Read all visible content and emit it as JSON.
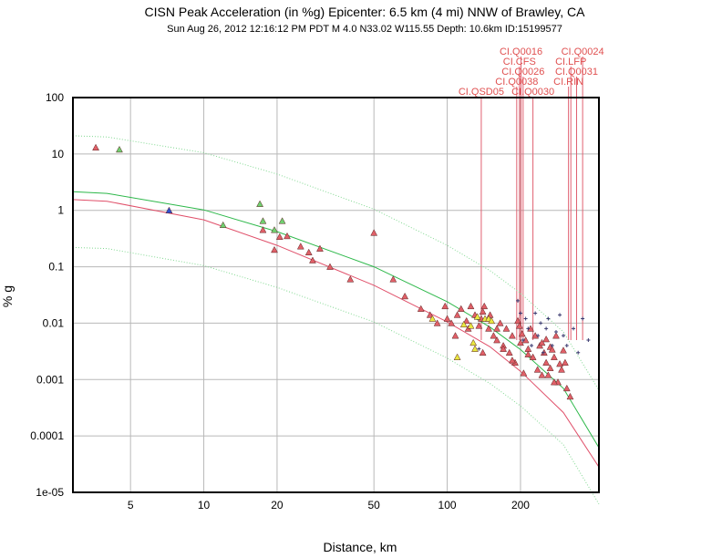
{
  "chart_data": {
    "type": "scatter",
    "title": "CISN Peak Acceleration (in %g) Epicenter: 6.5 km (4 mi) NNW of Brawley, CA",
    "subtitle": "Sun Aug 26, 2012 12:16:12 PM PDT   M 4.0   N33.02 W115.55   Depth: 10.6km   ID:15199577",
    "xlabel": "Distance, km",
    "ylabel": "% g",
    "x_scale": "log",
    "y_scale": "log",
    "xlim": [
      2.9,
      420
    ],
    "ylim": [
      1e-05,
      100
    ],
    "grid": true,
    "x_ticks": [
      {
        "value": 5,
        "label": "5"
      },
      {
        "value": 10,
        "label": "10"
      },
      {
        "value": 20,
        "label": "20"
      },
      {
        "value": 50,
        "label": "50"
      },
      {
        "value": 100,
        "label": "100"
      },
      {
        "value": 200,
        "label": "200"
      }
    ],
    "y_ticks": [
      {
        "value": 100,
        "label": "100"
      },
      {
        "value": 10,
        "label": "10"
      },
      {
        "value": 1,
        "label": "1"
      },
      {
        "value": 0.1,
        "label": "0.1"
      },
      {
        "value": 0.01,
        "label": "0.01"
      },
      {
        "value": 0.001,
        "label": "0.001"
      },
      {
        "value": 0.0001,
        "label": "0.0001"
      },
      {
        "value": 1e-05,
        "label": "1e-05"
      }
    ],
    "curves": [
      {
        "color": "#2db84a",
        "style": "solid",
        "points": [
          [
            2.9,
            2.15
          ],
          [
            4,
            2.0
          ],
          [
            10,
            1.02
          ],
          [
            20,
            0.42
          ],
          [
            50,
            0.1
          ],
          [
            100,
            0.024
          ],
          [
            150,
            0.0085
          ],
          [
            200,
            0.0034
          ],
          [
            300,
            0.0007
          ],
          [
            420,
            6.2e-05
          ]
        ]
      },
      {
        "color": "#e0506a",
        "style": "solid",
        "points": [
          [
            2.9,
            1.55
          ],
          [
            4,
            1.45
          ],
          [
            10,
            0.68
          ],
          [
            20,
            0.24
          ],
          [
            50,
            0.047
          ],
          [
            100,
            0.0105
          ],
          [
            150,
            0.0038
          ],
          [
            200,
            0.0014
          ],
          [
            300,
            0.00026
          ],
          [
            420,
            2.8e-05
          ]
        ]
      },
      {
        "color": "#80d890",
        "style": "dotted",
        "points": [
          [
            2.9,
            21
          ],
          [
            4,
            20
          ],
          [
            10,
            10.5
          ],
          [
            20,
            4.4
          ],
          [
            50,
            1.05
          ],
          [
            100,
            0.24
          ],
          [
            150,
            0.085
          ],
          [
            200,
            0.034
          ],
          [
            300,
            0.007
          ],
          [
            420,
            0.00065
          ]
        ]
      },
      {
        "color": "#80d890",
        "style": "dotted",
        "points": [
          [
            2.9,
            0.22
          ],
          [
            4,
            0.21
          ],
          [
            10,
            0.105
          ],
          [
            20,
            0.043
          ],
          [
            50,
            0.0105
          ],
          [
            100,
            0.0024
          ],
          [
            150,
            0.00085
          ],
          [
            200,
            0.00034
          ],
          [
            300,
            7e-05
          ],
          [
            420,
            6.2e-06
          ]
        ]
      }
    ],
    "series": [
      {
        "marker": "triangle",
        "color": "#e06068",
        "points": [
          [
            3.6,
            13
          ],
          [
            17.5,
            0.45
          ],
          [
            19.5,
            0.2
          ],
          [
            20.5,
            0.34
          ],
          [
            22,
            0.35
          ],
          [
            25,
            0.23
          ],
          [
            27,
            0.18
          ],
          [
            28,
            0.13
          ],
          [
            30,
            0.21
          ],
          [
            33,
            0.1
          ],
          [
            40,
            0.06
          ],
          [
            50,
            0.4
          ],
          [
            60,
            0.06
          ],
          [
            67,
            0.03
          ],
          [
            78,
            0.018
          ],
          [
            85,
            0.014
          ],
          [
            91,
            0.01
          ],
          [
            98,
            0.02
          ],
          [
            100,
            0.012
          ],
          [
            104,
            0.01
          ],
          [
            108,
            0.006
          ],
          [
            110,
            0.014
          ],
          [
            114,
            0.018
          ],
          [
            120,
            0.011
          ],
          [
            122,
            0.008
          ],
          [
            125,
            0.02
          ],
          [
            130,
            0.014
          ],
          [
            135,
            0.009
          ],
          [
            138,
            0.012
          ],
          [
            140,
            0.016
          ],
          [
            142,
            0.02
          ],
          [
            148,
            0.008
          ],
          [
            150,
            0.014
          ],
          [
            155,
            0.006
          ],
          [
            160,
            0.005
          ],
          [
            165,
            0.01
          ],
          [
            170,
            0.004
          ],
          [
            175,
            0.008
          ],
          [
            180,
            0.003
          ],
          [
            185,
            0.006
          ],
          [
            190,
            0.002
          ],
          [
            195,
            0.011
          ],
          [
            198,
            0.009
          ],
          [
            200,
            0.0045
          ],
          [
            203,
            0.0065
          ],
          [
            206,
            0.0013
          ],
          [
            210,
            0.005
          ],
          [
            215,
            0.0035
          ],
          [
            220,
            0.008
          ],
          [
            225,
            0.0025
          ],
          [
            230,
            0.006
          ],
          [
            235,
            0.0015
          ],
          [
            240,
            0.004
          ],
          [
            245,
            0.0045
          ],
          [
            250,
            0.003
          ],
          [
            255,
            0.002
          ],
          [
            260,
            0.0012
          ],
          [
            265,
            0.0038
          ],
          [
            270,
            0.0034
          ],
          [
            275,
            0.0025
          ],
          [
            280,
            0.006
          ],
          [
            285,
            0.0009
          ],
          [
            290,
            0.0019
          ],
          [
            300,
            0.0033
          ],
          [
            310,
            0.0007
          ],
          [
            320,
            0.0005
          ],
          [
            140,
            0.003
          ],
          [
            160,
            0.008
          ],
          [
            170,
            0.0035
          ],
          [
            185,
            0.0022
          ],
          [
            215,
            0.0028
          ],
          [
            245,
            0.0012
          ],
          [
            255,
            0.0052
          ],
          [
            265,
            0.0016
          ],
          [
            275,
            0.0009
          ],
          [
            295,
            0.0015
          ],
          [
            305,
            0.002
          ]
        ]
      },
      {
        "marker": "triangle",
        "color": "#70d070",
        "points": [
          [
            4.5,
            12
          ],
          [
            12,
            0.55
          ],
          [
            17,
            1.3
          ],
          [
            17.5,
            0.65
          ],
          [
            21,
            0.65
          ],
          [
            19.5,
            0.45
          ]
        ]
      },
      {
        "marker": "triangle",
        "color": "#e8e840",
        "points": [
          [
            87,
            0.012
          ],
          [
            110,
            0.0025
          ],
          [
            117,
            0.0095
          ],
          [
            125,
            0.009
          ],
          [
            128,
            0.0045
          ],
          [
            130,
            0.0035
          ],
          [
            133,
            0.013
          ],
          [
            143,
            0.012
          ],
          [
            148,
            0.012
          ],
          [
            152,
            0.011
          ]
        ]
      },
      {
        "marker": "triangle",
        "color": "#3050d0",
        "points": [
          [
            7.2,
            1.0
          ]
        ]
      },
      {
        "marker": "plus",
        "color": "#3a3a70",
        "points": [
          [
            135,
            0.0035
          ],
          [
            195,
            0.025
          ],
          [
            200,
            0.015
          ],
          [
            205,
            0.005
          ],
          [
            210,
            0.012
          ],
          [
            215,
            0.008
          ],
          [
            222,
            0.004
          ],
          [
            230,
            0.015
          ],
          [
            236,
            0.006
          ],
          [
            242,
            0.01
          ],
          [
            248,
            0.003
          ],
          [
            255,
            0.008
          ],
          [
            260,
            0.012
          ],
          [
            270,
            0.004
          ],
          [
            280,
            0.007
          ],
          [
            290,
            0.014
          ],
          [
            300,
            0.006
          ],
          [
            310,
            0.004
          ],
          [
            330,
            0.008
          ],
          [
            345,
            0.003
          ],
          [
            360,
            0.012
          ],
          [
            380,
            0.005
          ]
        ]
      }
    ],
    "station_labels": [
      {
        "text": "CI.Q0016",
        "x": 201
      },
      {
        "text": "CI.Q0024",
        "x": 360
      },
      {
        "text": "CI.CFS",
        "x": 198
      },
      {
        "text": "CI.LFP",
        "x": 322
      },
      {
        "text": "CI.Q0026",
        "x": 205
      },
      {
        "text": "CI.Q0031",
        "x": 340
      },
      {
        "text": "CI.Q0038",
        "x": 193
      },
      {
        "text": "CI.RIN",
        "x": 315
      },
      {
        "text": "CI.QSD05",
        "x": 138
      },
      {
        "text": "CI.Q0030",
        "x": 225
      }
    ]
  }
}
